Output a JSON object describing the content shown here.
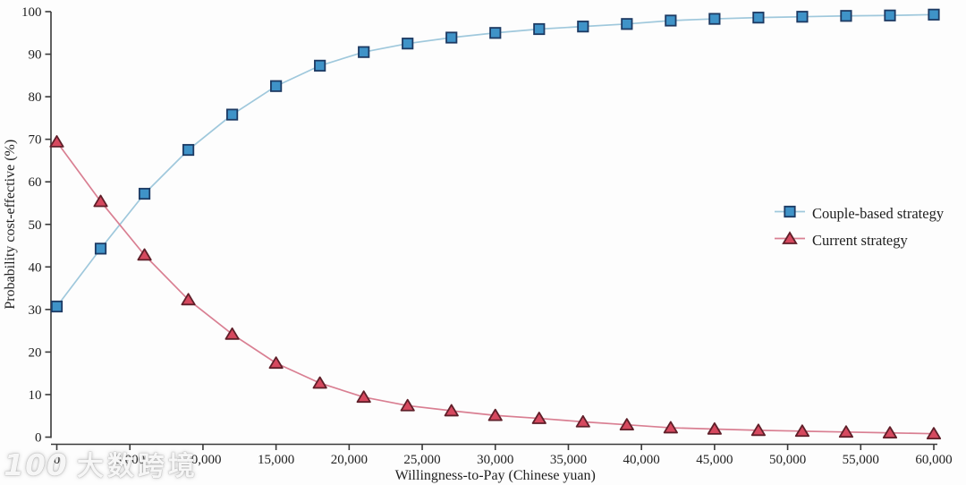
{
  "chart_data": {
    "type": "line",
    "title": "",
    "xlabel": "Willingness-to-Pay (Chinese yuan)",
    "ylabel": "Probability cost-effective (%)",
    "xlim": [
      0,
      60000
    ],
    "ylim": [
      0,
      100
    ],
    "grid": false,
    "legend_position": "right-middle",
    "x": [
      0,
      3000,
      6000,
      9000,
      12000,
      15000,
      18000,
      21000,
      24000,
      27000,
      30000,
      33000,
      36000,
      39000,
      42000,
      45000,
      48000,
      51000,
      54000,
      57000,
      60000
    ],
    "series": [
      {
        "name": "Couple-based strategy",
        "marker": "square",
        "line_color": "#9fc8dc",
        "marker_fill": "#3f93c8",
        "marker_stroke": "#1d3a63",
        "values": [
          30.7,
          44.3,
          57.2,
          67.5,
          75.8,
          82.5,
          87.3,
          90.5,
          92.5,
          93.9,
          95.0,
          95.9,
          96.5,
          97.1,
          97.9,
          98.3,
          98.6,
          98.8,
          99.0,
          99.1,
          99.3
        ]
      },
      {
        "name": "Current strategy",
        "marker": "triangle",
        "line_color": "#d97f92",
        "marker_fill": "#d6495f",
        "marker_stroke": "#5f1f29",
        "values": [
          69.4,
          55.4,
          42.8,
          32.3,
          24.2,
          17.4,
          12.7,
          9.4,
          7.4,
          6.2,
          5.1,
          4.4,
          3.6,
          2.9,
          2.2,
          1.9,
          1.6,
          1.4,
          1.2,
          1.0,
          0.8
        ]
      }
    ],
    "xticks": {
      "values": [
        0,
        5000,
        10000,
        15000,
        20000,
        25000,
        30000,
        35000,
        40000,
        45000,
        50000,
        55000,
        60000
      ],
      "labels": [
        "0",
        "5,000",
        "10,000",
        "15,000",
        "20,000",
        "25,000",
        "30,000",
        "35,000",
        "40,000",
        "45,000",
        "50,000",
        "55,000",
        "60,000"
      ]
    },
    "yticks": [
      0,
      10,
      20,
      30,
      40,
      50,
      60,
      70,
      80,
      90,
      100
    ],
    "axis_color": "#3a3a3a",
    "text_color": "#1f1f1f"
  },
  "watermark": {
    "logo": "100",
    "text": "大数跨境"
  }
}
